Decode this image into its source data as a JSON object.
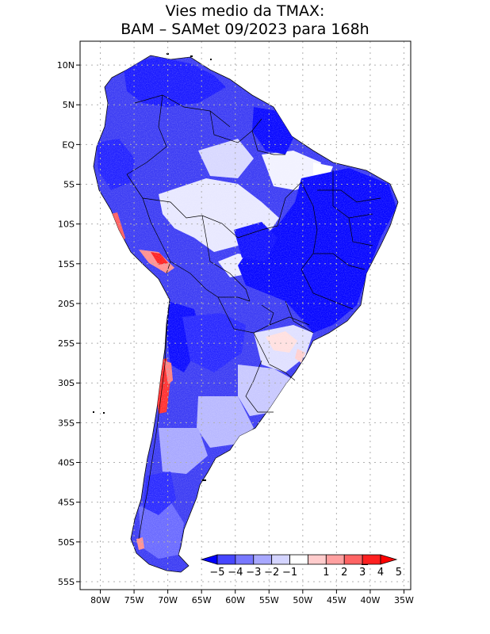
{
  "title": {
    "line1": "Vies medio da TMAX:",
    "line2": "BAM – SAMet 09/2023  para 168h"
  },
  "map": {
    "lon_range": [
      -83,
      -34
    ],
    "lat_range": [
      -56,
      13
    ],
    "lon_ticks": [
      {
        "value": -80,
        "label": "80W"
      },
      {
        "value": -75,
        "label": "75W"
      },
      {
        "value": -70,
        "label": "70W"
      },
      {
        "value": -65,
        "label": "65W"
      },
      {
        "value": -60,
        "label": "60W"
      },
      {
        "value": -55,
        "label": "55W"
      },
      {
        "value": -50,
        "label": "50W"
      },
      {
        "value": -45,
        "label": "45W"
      },
      {
        "value": -40,
        "label": "40W"
      },
      {
        "value": -35,
        "label": "35W"
      }
    ],
    "lat_ticks": [
      {
        "value": 10,
        "label": "10N"
      },
      {
        "value": 5,
        "label": "5N"
      },
      {
        "value": 0,
        "label": "EQ"
      },
      {
        "value": -5,
        "label": "5S"
      },
      {
        "value": -10,
        "label": "10S"
      },
      {
        "value": -15,
        "label": "15S"
      },
      {
        "value": -20,
        "label": "20S"
      },
      {
        "value": -25,
        "label": "25S"
      },
      {
        "value": -30,
        "label": "30S"
      },
      {
        "value": -35,
        "label": "35S"
      },
      {
        "value": -40,
        "label": "40S"
      },
      {
        "value": -45,
        "label": "45S"
      },
      {
        "value": -50,
        "label": "50S"
      },
      {
        "value": -55,
        "label": "55S"
      }
    ],
    "colors": {
      "ocean": "#ffffff",
      "grid": "#b0b0b0",
      "border": "#000000"
    }
  },
  "colorbar": {
    "labels": [
      "−5",
      "−4",
      "−3",
      "−2",
      "−1",
      "1",
      "2",
      "3",
      "4",
      "5"
    ],
    "colors": [
      "#0000ff",
      "#4646ff",
      "#7878ff",
      "#a8a8ff",
      "#d4d4ff",
      "#ffffff",
      "#ffcccc",
      "#ffa0a0",
      "#ff6464",
      "#ff2020",
      "#ff0000"
    ]
  }
}
